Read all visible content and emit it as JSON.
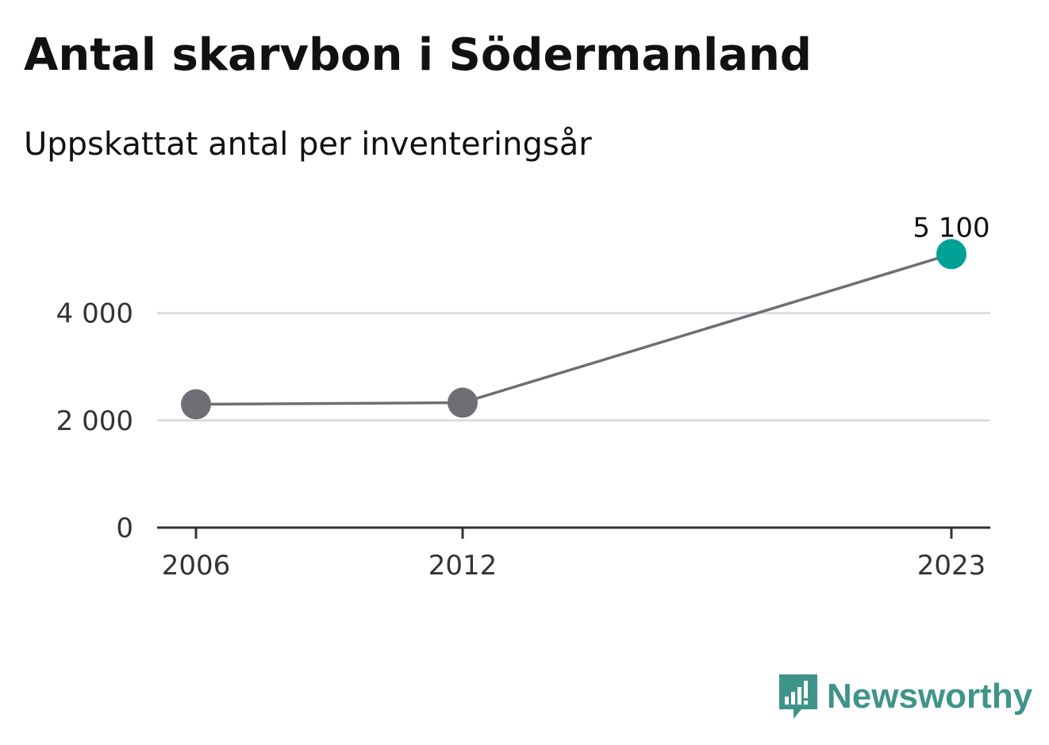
{
  "header": {
    "title": "Antal skarvbon i Södermanland",
    "subtitle": "Uppskattat antal per inventeringsår"
  },
  "chart_data": {
    "type": "line",
    "title": "Antal skarvbon i Södermanland",
    "subtitle": "Uppskattat antal per inventeringsår",
    "xlabel": "",
    "ylabel": "",
    "x": [
      2006,
      2012,
      2023
    ],
    "x_tick_labels": [
      "2006",
      "2012",
      "2023"
    ],
    "series": [
      {
        "values": [
          2300,
          2330,
          5100
        ]
      }
    ],
    "highlight": {
      "x": 2023,
      "value": 5100,
      "label": "5 100"
    },
    "ylim": [
      0,
      5400
    ],
    "y_ticks": [
      0,
      2000,
      4000
    ],
    "y_tick_labels": [
      "0",
      "2 000",
      "4 000"
    ],
    "grid": true,
    "legend": "none",
    "colors": {
      "line": "#6f6e75",
      "point": "#6f6e75",
      "highlight": "#00a195",
      "grid": "#dddddd",
      "axis": "#333333",
      "tick_text": "#333333"
    }
  },
  "branding": {
    "logo_text": "Newsworthy",
    "logo_icon": "bar-chart-speech-bubble-icon",
    "logo_color": "#3f948a"
  }
}
